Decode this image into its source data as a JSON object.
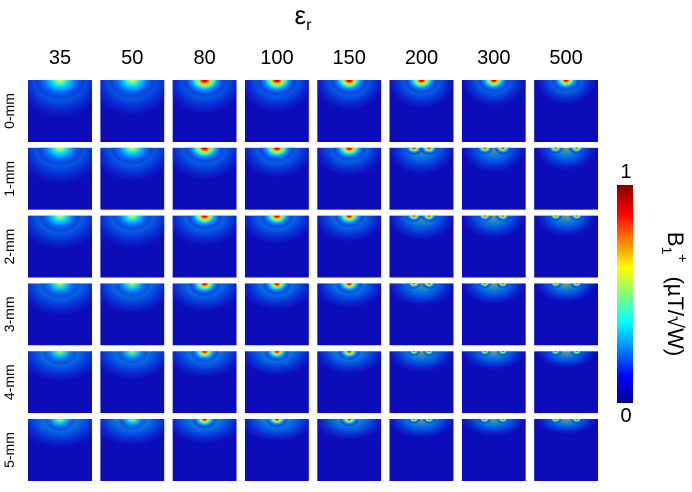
{
  "figure": {
    "header": {
      "symbol": "ε",
      "subscript": "r"
    },
    "columns": [
      "35",
      "50",
      "80",
      "100",
      "150",
      "200",
      "300",
      "500"
    ],
    "rows": [
      "0-mm",
      "1-mm",
      "2-mm",
      "3-mm",
      "4-mm",
      "5-mm"
    ],
    "colorbar": {
      "max_label": "1",
      "min_label": "0",
      "label_base": "B",
      "label_sub": "1",
      "label_sup": "+",
      "label_unit": "(µT/√W)"
    }
  }
}
